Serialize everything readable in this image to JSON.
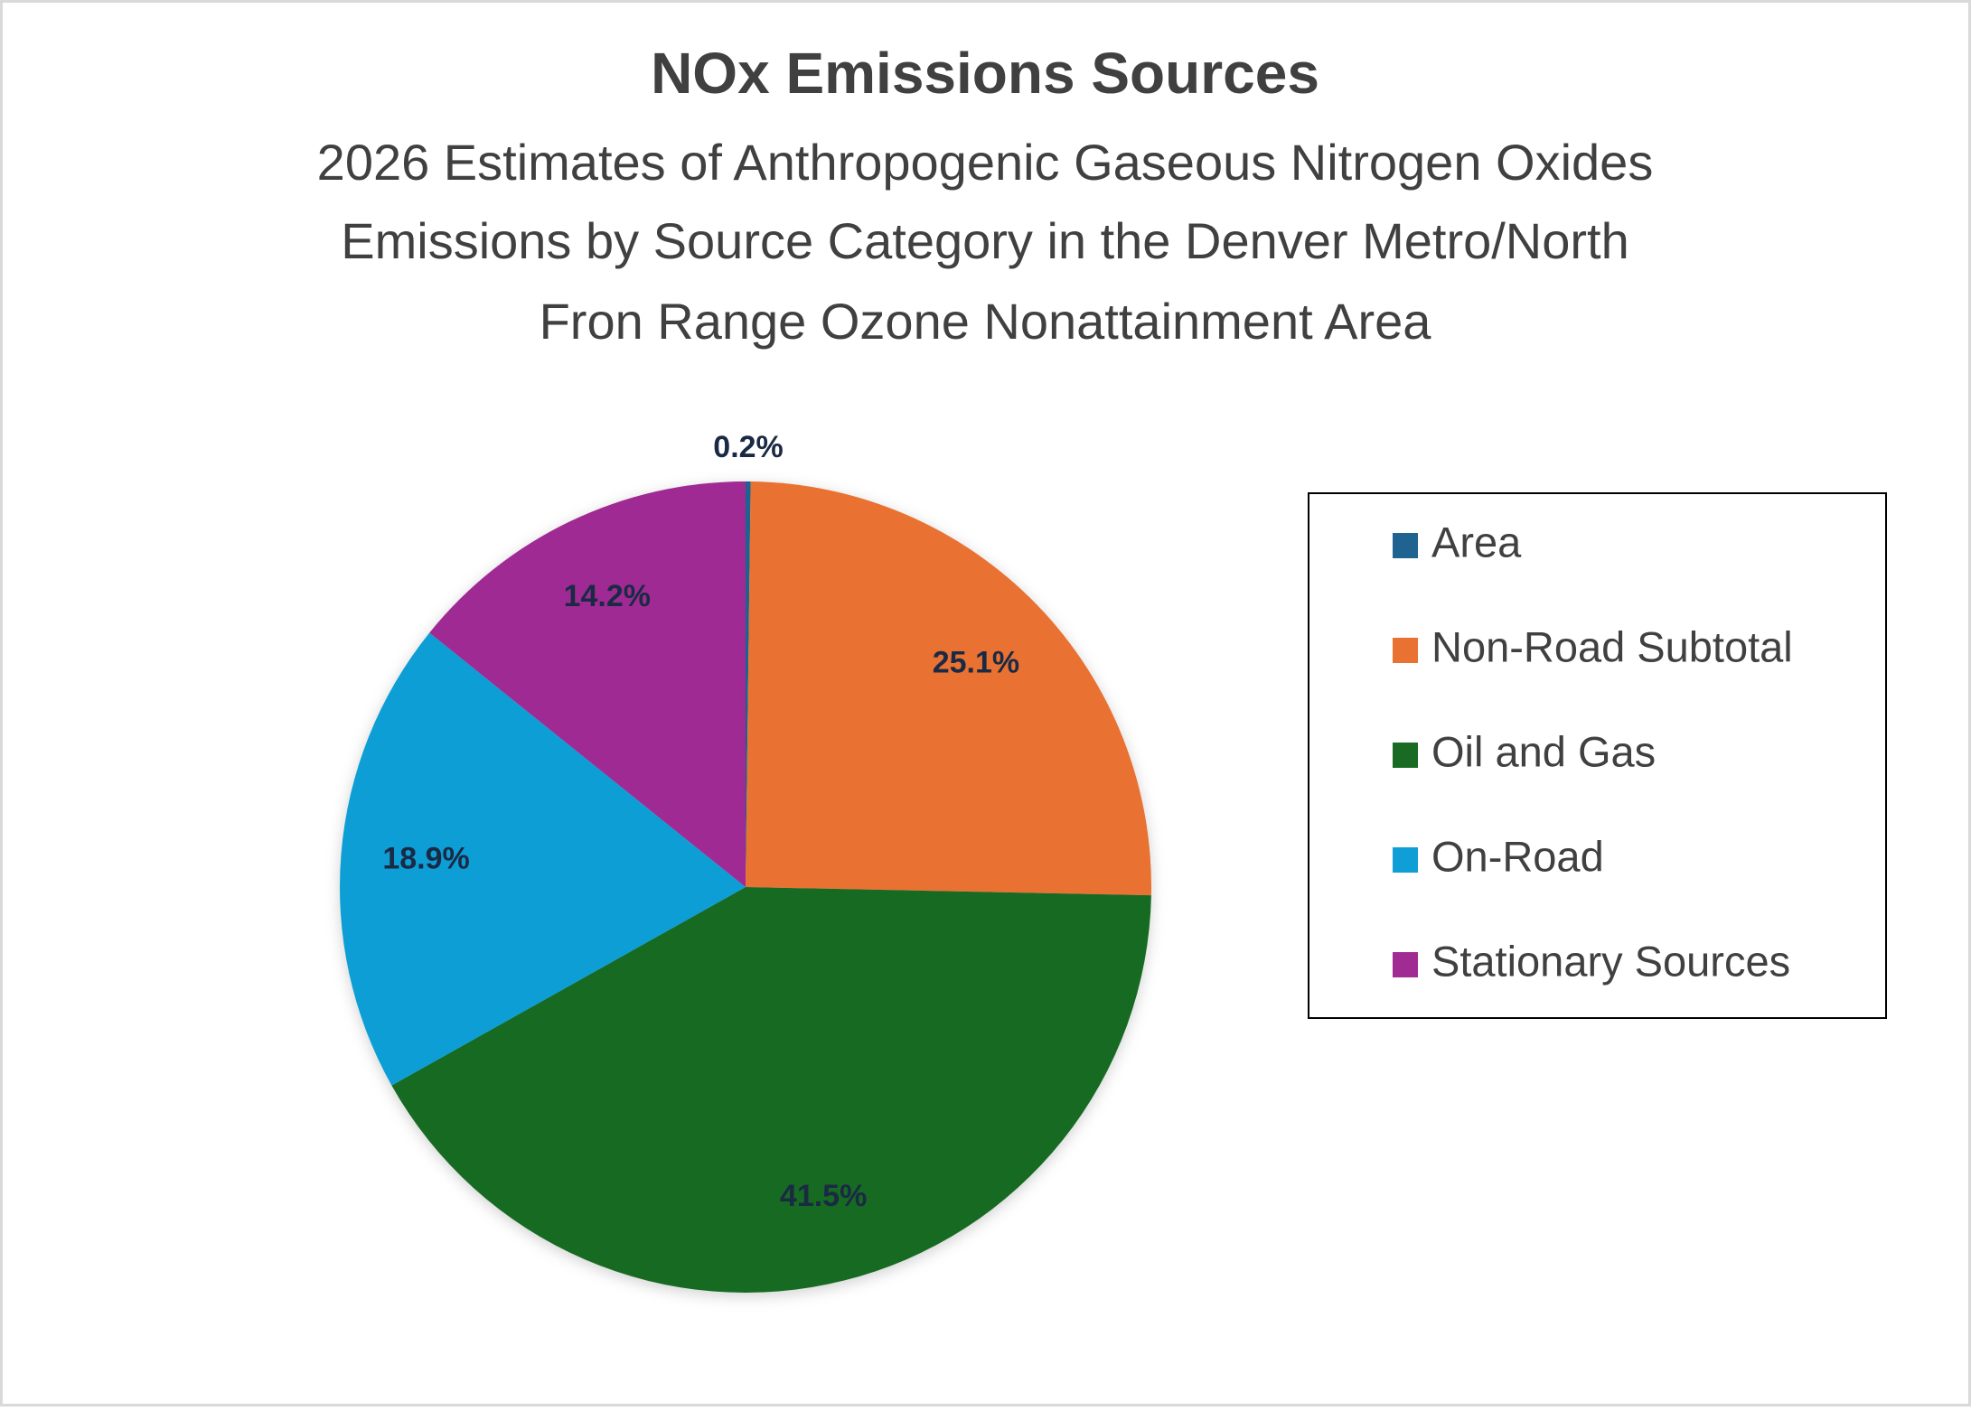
{
  "chart_data": {
    "type": "pie",
    "title": "NOx Emissions Sources",
    "subtitle": [
      "2026 Estimates of Anthropogenic Gaseous Nitrogen Oxides",
      "Emissions by Source Category in the Denver Metro/North",
      "Fron Range Ozone Nonattainment Area"
    ],
    "categories": [
      "Area",
      "Non-Road Subtotal",
      "Oil and Gas",
      "On-Road",
      "Stationary Sources"
    ],
    "values": [
      0.2,
      25.1,
      41.5,
      18.9,
      14.2
    ],
    "value_labels": [
      "0.2%",
      "25.1%",
      "41.5%",
      "18.9%",
      "14.2%"
    ],
    "colors": [
      "#1f6391",
      "#e97132",
      "#196b24",
      "#0f9ed5",
      "#a02b93"
    ],
    "legend": "right"
  }
}
